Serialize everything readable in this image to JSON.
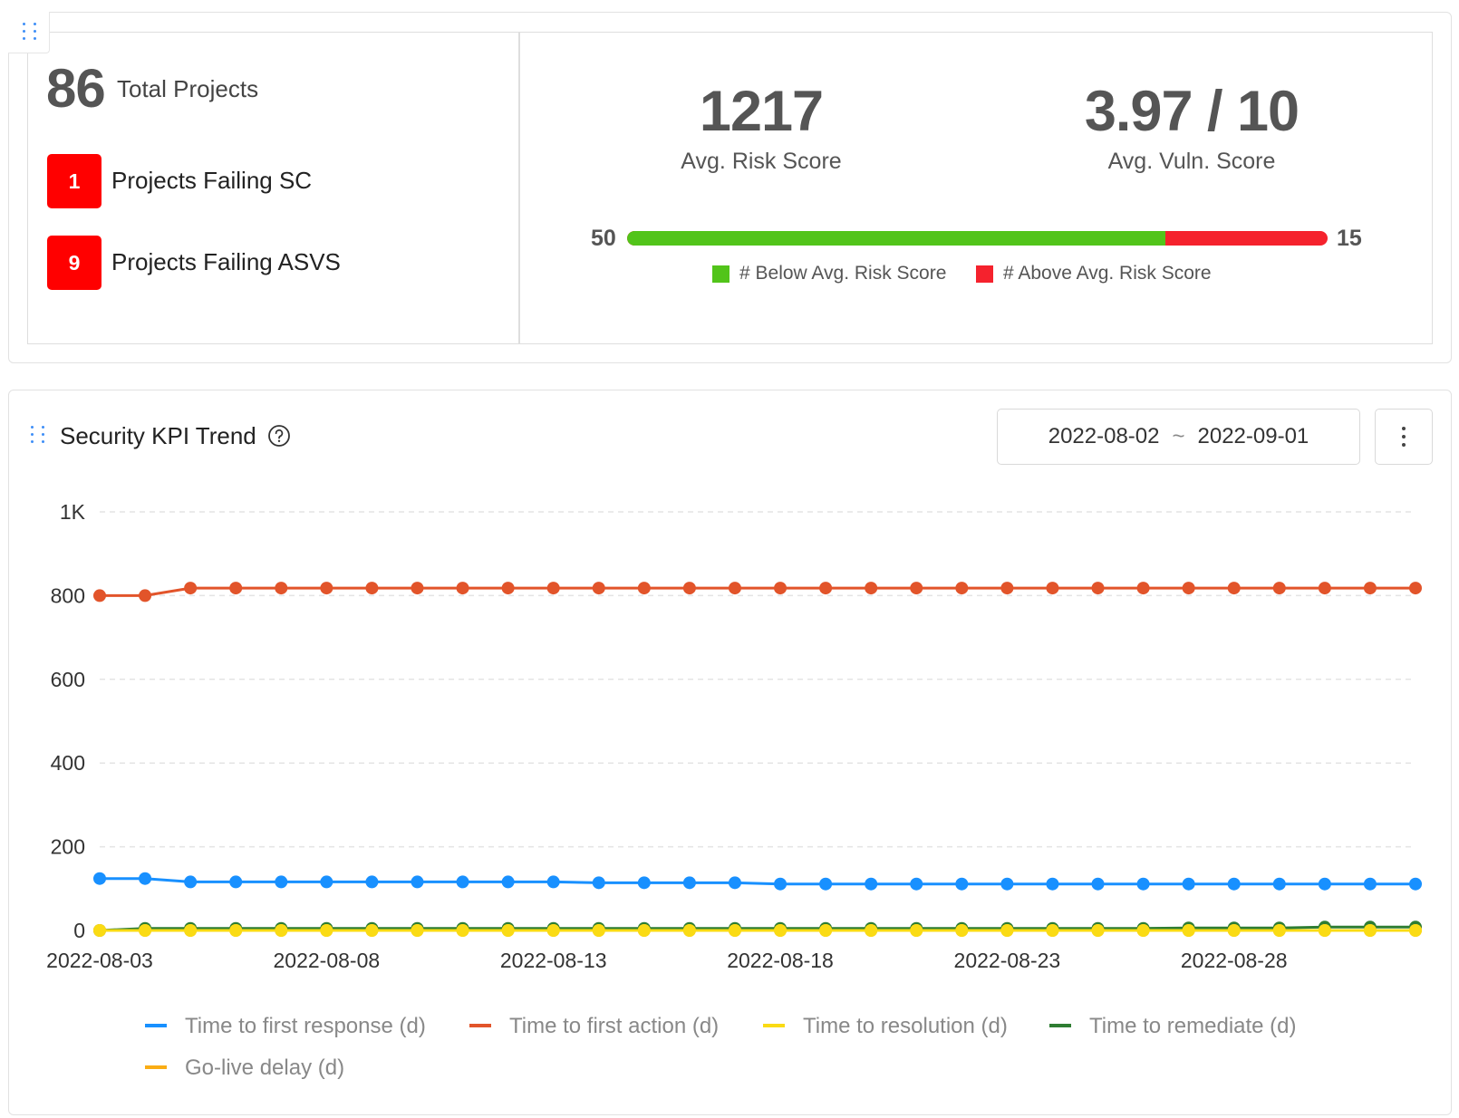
{
  "summary": {
    "total_projects_value": "86",
    "total_projects_label": "Total Projects",
    "failing_sc_count": "1",
    "failing_sc_label": "Projects Failing SC",
    "failing_asvs_count": "9",
    "failing_asvs_label": "Projects Failing ASVS",
    "avg_risk_score_value": "1217",
    "avg_risk_score_label": "Avg. Risk Score",
    "avg_vuln_score_value": "3.97 / 10",
    "avg_vuln_score_label": "Avg. Vuln. Score",
    "below_avg_count": "50",
    "above_avg_count": "15",
    "below_avg_fraction": 0.769,
    "below_avg_legend": "# Below Avg. Risk Score",
    "above_avg_legend": "# Above Avg. Risk Score",
    "colors": {
      "below": "#52c41a",
      "above": "#f5222d",
      "badge": "#ff0000"
    }
  },
  "kpi": {
    "title": "Security KPI Trend",
    "date_start": "2022-08-02",
    "date_separator": "~",
    "date_end": "2022-09-01",
    "icons": [
      "drag-handle-icon",
      "help-circle-icon",
      "more-vertical-icon"
    ]
  },
  "chart_data": {
    "type": "line",
    "y_ticks": [
      "0",
      "200",
      "400",
      "600",
      "800",
      "1K"
    ],
    "ylim": [
      0,
      1000
    ],
    "x_tick_labels": [
      "2022-08-03",
      "2022-08-08",
      "2022-08-13",
      "2022-08-18",
      "2022-08-23",
      "2022-08-28"
    ],
    "x": [
      "2022-08-03",
      "2022-08-04",
      "2022-08-05",
      "2022-08-06",
      "2022-08-07",
      "2022-08-08",
      "2022-08-09",
      "2022-08-10",
      "2022-08-11",
      "2022-08-12",
      "2022-08-13",
      "2022-08-14",
      "2022-08-15",
      "2022-08-16",
      "2022-08-17",
      "2022-08-18",
      "2022-08-19",
      "2022-08-20",
      "2022-08-21",
      "2022-08-22",
      "2022-08-23",
      "2022-08-24",
      "2022-08-25",
      "2022-08-26",
      "2022-08-27",
      "2022-08-28",
      "2022-08-29",
      "2022-08-30",
      "2022-08-31",
      "2022-09-01"
    ],
    "grid": true,
    "legend_position": "bottom",
    "series": [
      {
        "name": "Time to first response (d)",
        "color": "#1890ff",
        "values": [
          124,
          124,
          116,
          116,
          116,
          116,
          116,
          116,
          116,
          116,
          116,
          114,
          114,
          114,
          114,
          111,
          111,
          111,
          111,
          111,
          111,
          111,
          111,
          111,
          111,
          111,
          111,
          111,
          111,
          111
        ]
      },
      {
        "name": "Time to first action (d)",
        "color": "#e2542a",
        "values": [
          800,
          800,
          818,
          818,
          818,
          818,
          818,
          818,
          818,
          818,
          818,
          818,
          818,
          818,
          818,
          818,
          818,
          818,
          818,
          818,
          818,
          818,
          818,
          818,
          818,
          818,
          818,
          818,
          818,
          818
        ]
      },
      {
        "name": "Time to resolution (d)",
        "color": "#fadb14",
        "values": [
          0,
          0,
          0,
          0,
          0,
          0,
          0,
          0,
          0,
          0,
          0,
          0,
          0,
          0,
          0,
          0,
          0,
          0,
          0,
          0,
          0,
          0,
          0,
          0,
          0,
          0,
          0,
          0,
          0,
          0
        ]
      },
      {
        "name": "Time to remediate (d)",
        "color": "#2e7d32",
        "values": [
          0,
          5,
          5,
          5,
          5,
          5,
          5,
          5,
          5,
          5,
          5,
          5,
          5,
          5,
          5,
          5,
          5,
          5,
          5,
          5,
          5,
          5,
          5,
          5,
          6,
          6,
          6,
          8,
          8,
          8
        ]
      },
      {
        "name": "Go-live delay (d)",
        "color": "#faad14",
        "values": [
          0,
          0,
          0,
          0,
          0,
          0,
          0,
          0,
          0,
          0,
          0,
          0,
          0,
          0,
          0,
          0,
          0,
          0,
          0,
          0,
          0,
          0,
          0,
          0,
          0,
          0,
          0,
          0,
          0,
          0
        ]
      }
    ]
  }
}
